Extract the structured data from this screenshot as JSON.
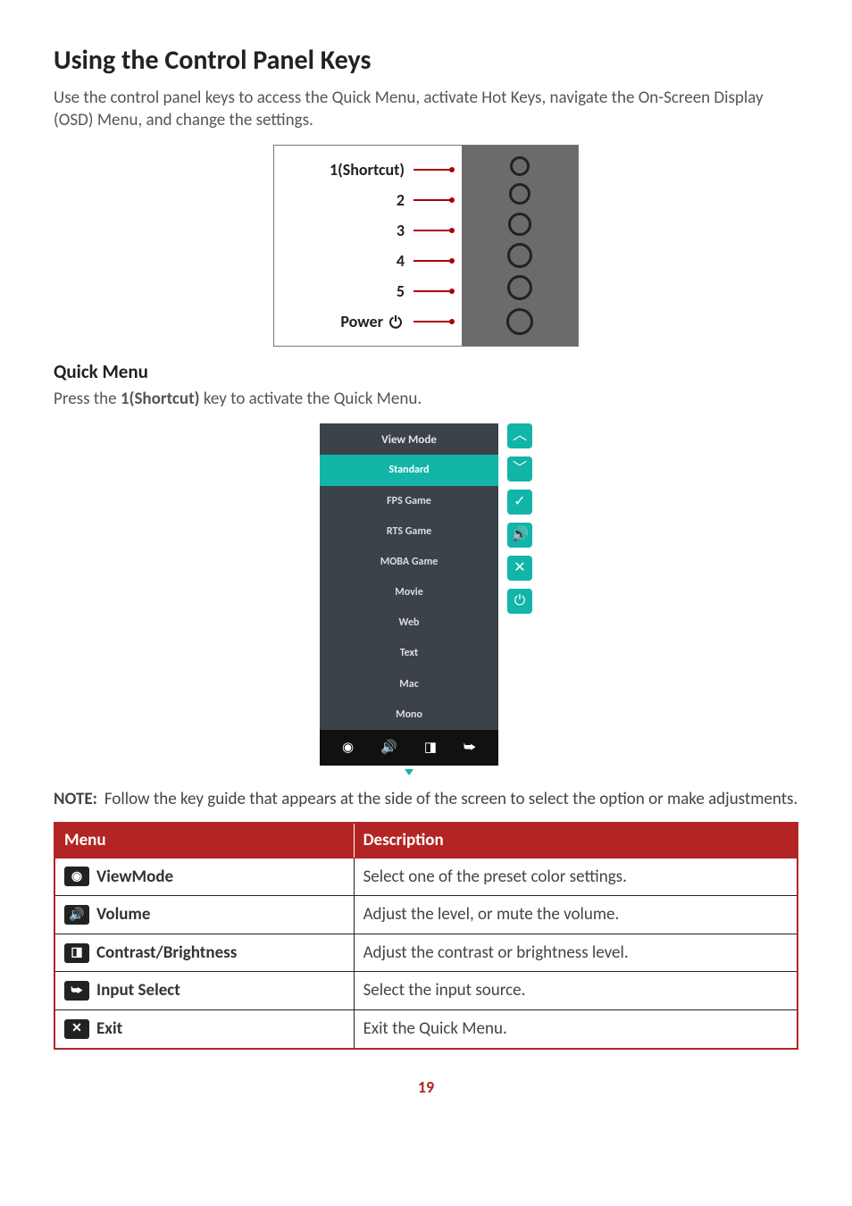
{
  "title": "Using the Control Panel Keys",
  "intro": "Use the control panel keys to access the Quick Menu, activate Hot Keys, navigate the On-Screen Display (OSD) Menu, and change the settings.",
  "panel_diagram": {
    "rows": [
      {
        "label": "1(Shortcut)",
        "btn_size": 16
      },
      {
        "label": "2",
        "btn_size": 18
      },
      {
        "label": "3",
        "btn_size": 20
      },
      {
        "label": "4",
        "btn_size": 22
      },
      {
        "label": "5",
        "btn_size": 22
      },
      {
        "label": "Power",
        "btn_size": 24,
        "has_power_glyph": true
      }
    ],
    "line_color": "#a00",
    "panel_bg": "#6b6b6b",
    "border_color": "#777"
  },
  "quick_menu_heading": "Quick Menu",
  "quick_menu_intro_pre": "Press the ",
  "quick_menu_intro_bold": "1(Shortcut)",
  "quick_menu_intro_post": " key to activate the Quick Menu.",
  "quick_menu": {
    "header": "View Mode",
    "items": [
      {
        "label": "Standard",
        "selected": true
      },
      {
        "label": "FPS Game"
      },
      {
        "label": "RTS Game"
      },
      {
        "label": "MOBA Game"
      },
      {
        "label": "Movie"
      },
      {
        "label": "Web"
      },
      {
        "label": "Text"
      },
      {
        "label": "Mac"
      },
      {
        "label": "Mono"
      }
    ],
    "footer_icons": [
      "eye-icon",
      "volume-icon",
      "contrast-icon",
      "input-icon"
    ],
    "side_buttons": [
      "up-icon",
      "down-icon",
      "check-icon",
      "volume-icon",
      "close-icon",
      "power-icon"
    ],
    "accent_color": "#12b5a8",
    "panel_bg": "#3b424a"
  },
  "note_label": "NOTE:",
  "note_text": "Follow the key guide that appears at the side of the screen to select the option or make adjustments.",
  "table": {
    "headers": [
      "Menu",
      "Description"
    ],
    "rows": [
      {
        "icon": "eye-icon",
        "name": "ViewMode",
        "desc": "Select one of the preset color settings."
      },
      {
        "icon": "volume-icon",
        "name": "Volume",
        "desc": "Adjust the level, or mute the volume."
      },
      {
        "icon": "contrast-icon",
        "name": "Contrast/Brightness",
        "desc": "Adjust the contrast or brightness level."
      },
      {
        "icon": "input-icon",
        "name": "Input Select",
        "desc": "Select the input source."
      },
      {
        "icon": "close-icon",
        "name": "Exit",
        "desc": "Exit the Quick Menu."
      }
    ],
    "header_bg": "#b32424"
  },
  "page_number": "19",
  "icon_glyphs": {
    "eye-icon": "◉",
    "volume-icon": "🔊",
    "contrast-icon": "◨",
    "input-icon": "⮩",
    "close-icon": "✕",
    "up-icon": "︿",
    "down-icon": "﹀",
    "check-icon": "✓",
    "power-icon": "⏻"
  }
}
